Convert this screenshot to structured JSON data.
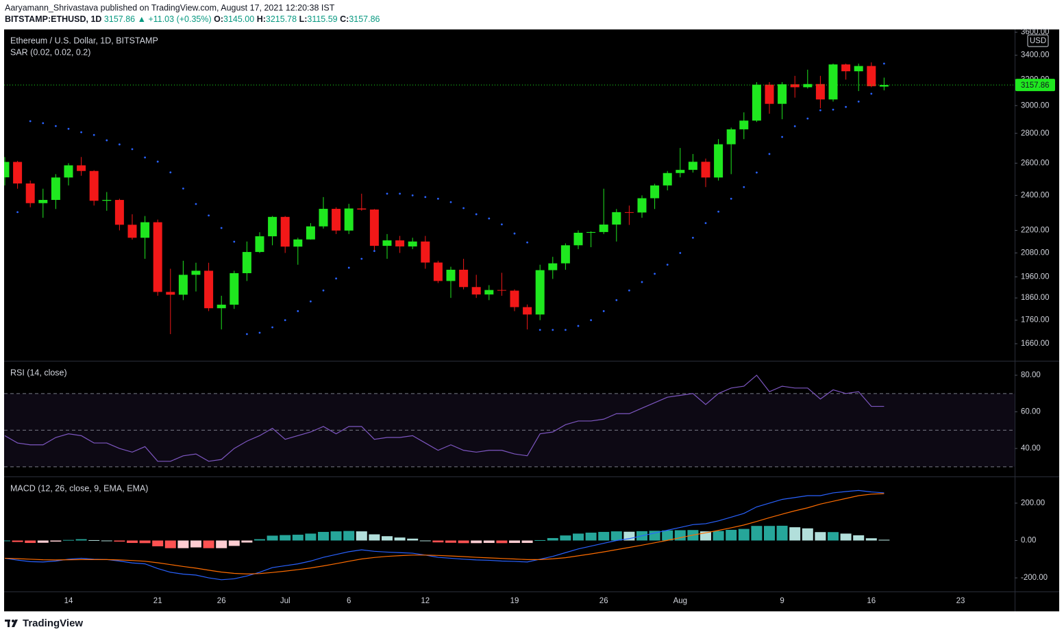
{
  "header": {
    "byline": "Aaryamann_Shrivastava published on TradingView.com, August 17, 2021 12:20:38 IST",
    "symbol": "BITSTAMP:ETHUSD, 1D",
    "price": "3157.86",
    "change": "▲ +11.03 (+0.35%)",
    "open_label": "O:",
    "open": "3145.00",
    "high_label": "H:",
    "high": "3215.78",
    "low_label": "L:",
    "low": "3115.59",
    "close_label": "C:",
    "close": "3157.86"
  },
  "footer": {
    "brand": "TradingView"
  },
  "chart_data": [
    {
      "type": "candlestick",
      "title": "Ethereum / U.S. Dollar, 1D, BITSTAMP",
      "y_unit_label": "USD",
      "log_scale": true,
      "grid": false,
      "up_color": "#1fe81f",
      "down_color": "#f21818",
      "categories": [
        null,
        null,
        null,
        null,
        null,
        "14",
        null,
        null,
        null,
        null,
        null,
        null,
        "21",
        null,
        null,
        null,
        null,
        "26",
        null,
        null,
        null,
        null,
        "Jul",
        null,
        null,
        null,
        null,
        "6",
        null,
        null,
        null,
        null,
        null,
        "12",
        null,
        null,
        null,
        null,
        null,
        null,
        "19",
        null,
        null,
        null,
        null,
        null,
        null,
        "26",
        null,
        null,
        null,
        null,
        null,
        "Aug",
        null,
        null,
        null,
        null,
        null,
        null,
        null,
        "9",
        null,
        null,
        null,
        null,
        null,
        null,
        "16",
        null,
        null,
        null,
        null,
        null,
        null,
        "23",
        null,
        null,
        null,
        null
      ],
      "open": [
        2510,
        2608,
        2472,
        2354,
        2373,
        2509,
        2586,
        2550,
        2368,
        2373,
        2231,
        2160,
        2245,
        1888,
        1875,
        1970,
        1990,
        1813,
        1829,
        1978,
        2085,
        2168,
        2275,
        2113,
        2151,
        2222,
        2321,
        2199,
        2323,
        2317,
        2117,
        2146,
        2114,
        2140,
        2031,
        1940,
        1995,
        1911,
        1876,
        1897,
        1894,
        1818,
        1785,
        1993,
        2027,
        2120,
        2187,
        2191,
        2232,
        2302,
        2300,
        2383,
        2460,
        2537,
        2557,
        2609,
        2509,
        2725,
        2828,
        2890,
        3160,
        3013,
        3163,
        3140,
        3165,
        3046,
        3323,
        3267,
        3310,
        3145,
        null,
        null,
        null,
        null,
        null,
        null,
        null,
        null,
        null,
        null
      ],
      "high": [
        2640,
        2615,
        2490,
        2440,
        2530,
        2600,
        2640,
        2555,
        2420,
        2380,
        2290,
        2280,
        2260,
        2000,
        2040,
        2030,
        2030,
        1870,
        1990,
        2140,
        2190,
        2280,
        2280,
        2160,
        2240,
        2390,
        2330,
        2350,
        2410,
        2320,
        2180,
        2170,
        2160,
        2170,
        2040,
        2010,
        2050,
        1970,
        1920,
        1980,
        1900,
        1830,
        2020,
        2060,
        2130,
        2200,
        2195,
        2440,
        2320,
        2340,
        2400,
        2470,
        2550,
        2700,
        2660,
        2630,
        2760,
        2840,
        2950,
        3180,
        3180,
        3180,
        3230,
        3280,
        3230,
        3330,
        3330,
        3330,
        3340,
        3215.78,
        null,
        null,
        null,
        null,
        null,
        null,
        null,
        null,
        null,
        null
      ],
      "low": [
        2460,
        2440,
        2330,
        2270,
        2320,
        2460,
        2520,
        2340,
        2310,
        2200,
        2150,
        2050,
        1870,
        1700,
        1850,
        1890,
        1800,
        1720,
        1810,
        1940,
        2080,
        2120,
        2080,
        2020,
        2150,
        2210,
        2180,
        2180,
        2310,
        2090,
        2050,
        2080,
        2100,
        2000,
        1930,
        1860,
        1900,
        1860,
        1850,
        1870,
        1800,
        1720,
        1760,
        1950,
        1995,
        2100,
        2110,
        2180,
        2140,
        2230,
        2270,
        2320,
        2430,
        2510,
        2540,
        2450,
        2490,
        2530,
        2760,
        2880,
        2940,
        2900,
        3060,
        3130,
        2980,
        3030,
        3200,
        3110,
        3140,
        3115.59,
        null,
        null,
        null,
        null,
        null,
        null,
        null,
        null,
        null,
        null
      ],
      "close": [
        2608,
        2472,
        2354,
        2373,
        2509,
        2586,
        2550,
        2368,
        2373,
        2231,
        2160,
        2245,
        1888,
        1875,
        1970,
        1990,
        1813,
        1829,
        1978,
        2085,
        2168,
        2275,
        2113,
        2151,
        2222,
        2321,
        2199,
        2323,
        2317,
        2117,
        2146,
        2114,
        2140,
        2031,
        1940,
        1995,
        1911,
        1876,
        1897,
        1894,
        1818,
        1785,
        1993,
        2027,
        2120,
        2187,
        2191,
        2232,
        2302,
        2300,
        2383,
        2460,
        2537,
        2557,
        2609,
        2509,
        2725,
        2828,
        2890,
        3160,
        3013,
        3163,
        3140,
        3165,
        3046,
        3323,
        3267,
        3310,
        3148,
        3157.86,
        null,
        null,
        null,
        null,
        null,
        null,
        null,
        null,
        null,
        null
      ],
      "series": [
        {
          "name": "SAR (0.02, 0.02, 0.2)",
          "type": "dots",
          "color": "#2962ff",
          "values": [
            null,
            2302,
            2886,
            2872,
            2851,
            2832,
            2808,
            2789,
            2752,
            2724,
            2692,
            2637,
            2610,
            2541,
            2441,
            2349,
            2283,
            2213,
            2139,
            1700,
            1706,
            1729,
            1760,
            1800,
            1844,
            1895,
            1952,
            2005,
            2050,
            2090,
            2410,
            2410,
            2400,
            2390,
            2380,
            2360,
            2325,
            2290,
            2266,
            2233,
            2183,
            2135,
            1718,
            1718,
            1718,
            1735,
            1760,
            1800,
            1850,
            1895,
            1935,
            1975,
            2020,
            2080,
            2160,
            2240,
            2305,
            2380,
            2450,
            2540,
            2660,
            2775,
            2850,
            2905,
            2965,
            2970,
            2990,
            3030,
            3090,
            3330,
            null,
            null,
            null,
            null,
            null,
            null,
            null,
            null,
            null,
            null
          ]
        }
      ],
      "ylim": [
        1591,
        3625
      ],
      "yticks": [
        {
          "value": 1660,
          "label": "1660.00"
        },
        {
          "value": 1760,
          "label": "1760.00"
        },
        {
          "value": 1860,
          "label": "1860.00"
        },
        {
          "value": 1960,
          "label": "1960.00"
        },
        {
          "value": 2080,
          "label": "2080.00"
        },
        {
          "value": 2200,
          "label": "2200.00"
        },
        {
          "value": 2400,
          "label": "2400.00"
        },
        {
          "value": 2600,
          "label": "2600.00"
        },
        {
          "value": 2800,
          "label": "2800.00"
        },
        {
          "value": 3000,
          "label": "3000.00"
        },
        {
          "value": 3200,
          "label": "3200.00"
        },
        {
          "value": 3400,
          "label": "3400.00"
        },
        {
          "value": 3600,
          "label": "3600.00"
        }
      ]
    },
    {
      "type": "line",
      "grid": false,
      "levels": [
        30,
        50,
        70
      ],
      "band_color": "#7e57c2",
      "series": [
        {
          "name": "RSI (14, close)",
          "type": "line",
          "color": "#7e57c2",
          "values": [
            47,
            43,
            42,
            42,
            46,
            48,
            47,
            43,
            43,
            40,
            38,
            41,
            33,
            33,
            36,
            37,
            33,
            34,
            40,
            44,
            47,
            51,
            45,
            47,
            49,
            52,
            48,
            52,
            52,
            45,
            46,
            46,
            47,
            43,
            39,
            42,
            39,
            38,
            39,
            39,
            37,
            36,
            48,
            49,
            53,
            55,
            55,
            56,
            59,
            59,
            62,
            65,
            68,
            69,
            70,
            64,
            70,
            73,
            74,
            80,
            71,
            74,
            73,
            73,
            67,
            72,
            70,
            71,
            63,
            63,
            null,
            null,
            null,
            null,
            null,
            null,
            null,
            null,
            null,
            null
          ]
        }
      ],
      "ylim": [
        24.7,
        87.5
      ],
      "yticks": [
        {
          "value": 40,
          "label": "40.00"
        },
        {
          "value": 60,
          "label": "60.00"
        },
        {
          "value": 80,
          "label": "80.00"
        }
      ]
    },
    {
      "type": "line",
      "grid": false,
      "title": "MACD (12, 26, close, 9, EMA, EMA)",
      "series": [
        {
          "type": "histogram",
          "colors": [
            "#26a69a",
            "#b2dfdb",
            "#ff5252",
            "#ffcdd2"
          ],
          "values": [
            0,
            -8,
            -13,
            -12,
            -6,
            3,
            7,
            2,
            0,
            -6,
            -13,
            -14,
            -31,
            -41,
            -41,
            -37,
            -41,
            -41,
            -29,
            -11,
            7,
            26,
            29,
            31,
            37,
            46,
            49,
            51,
            49,
            33,
            23,
            16,
            10,
            0,
            -10,
            -12,
            -14,
            -14,
            -13,
            -14,
            -13,
            -13,
            2,
            13,
            27,
            37,
            42,
            46,
            49,
            47,
            50,
            52,
            54,
            55,
            56,
            49,
            51,
            57,
            62,
            78,
            78,
            79,
            71,
            65,
            45,
            45,
            37,
            28,
            12,
            4,
            null,
            null,
            null,
            null,
            null,
            null,
            null,
            null,
            null,
            null
          ]
        },
        {
          "type": "line",
          "color": "#2962ff",
          "values": [
            -95,
            -105,
            -113,
            -115,
            -110,
            -100,
            -95,
            -100,
            -102,
            -110,
            -120,
            -125,
            -150,
            -170,
            -180,
            -185,
            -200,
            -210,
            -205,
            -190,
            -170,
            -145,
            -135,
            -125,
            -110,
            -90,
            -75,
            -60,
            -50,
            -58,
            -62,
            -65,
            -68,
            -78,
            -90,
            -95,
            -100,
            -104,
            -106,
            -110,
            -112,
            -115,
            -100,
            -85,
            -65,
            -45,
            -30,
            -15,
            0,
            10,
            25,
            40,
            55,
            70,
            85,
            90,
            105,
            125,
            145,
            180,
            200,
            220,
            230,
            240,
            240,
            255,
            262,
            268,
            260,
            255,
            null,
            null,
            null,
            null,
            null,
            null,
            null,
            null,
            null,
            null
          ]
        },
        {
          "type": "line",
          "color": "#ff6d00",
          "values": [
            -95,
            -97,
            -100,
            -103,
            -104,
            -103,
            -102,
            -102,
            -102,
            -104,
            -107,
            -111,
            -119,
            -129,
            -139,
            -148,
            -159,
            -169,
            -176,
            -179,
            -177,
            -171,
            -164,
            -156,
            -147,
            -136,
            -124,
            -111,
            -99,
            -91,
            -85,
            -81,
            -78,
            -78,
            -80,
            -83,
            -86,
            -90,
            -93,
            -96,
            -99,
            -102,
            -102,
            -98,
            -92,
            -82,
            -72,
            -61,
            -49,
            -37,
            -25,
            -12,
            1,
            15,
            29,
            41,
            54,
            68,
            83,
            102,
            122,
            141,
            159,
            175,
            195,
            210,
            225,
            240,
            248,
            251,
            null,
            null,
            null,
            null,
            null,
            null,
            null,
            null,
            null,
            null
          ]
        }
      ],
      "ylim": [
        -273,
        339
      ],
      "yticks": [
        {
          "value": -200,
          "label": "-200.00"
        },
        {
          "value": 0,
          "label": "0.00"
        },
        {
          "value": 200,
          "label": "200.00"
        }
      ]
    }
  ]
}
